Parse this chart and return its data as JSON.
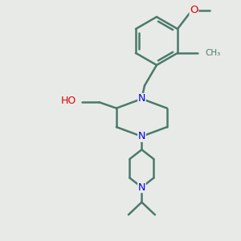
{
  "background_color": "#e8eae8",
  "bond_color": "#4a7a6a",
  "N_color": "#0000ee",
  "O_color": "#dd0000",
  "figsize": [
    3.0,
    3.0
  ],
  "dpi": 100,
  "xlim": [
    0,
    10
  ],
  "ylim": [
    0,
    10
  ]
}
